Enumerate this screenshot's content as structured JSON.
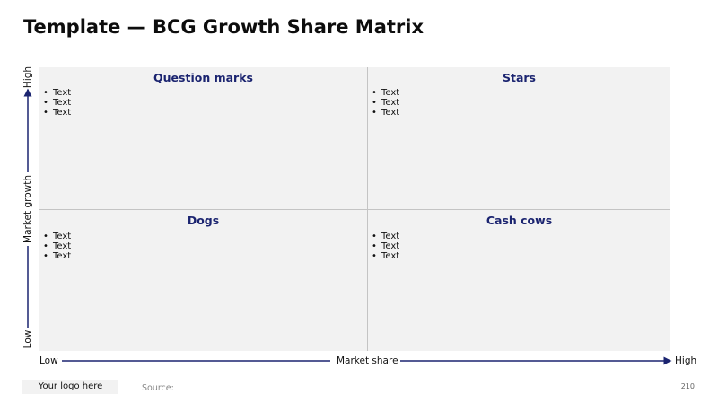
{
  "title": "Template — BCG Growth Share Matrix",
  "matrix": {
    "quadrants": [
      {
        "id": "question-marks",
        "title": "Question marks",
        "bullets": [
          "Text",
          "Text",
          "Text"
        ]
      },
      {
        "id": "stars",
        "title": "Stars",
        "bullets": [
          "Text",
          "Text",
          "Text"
        ]
      },
      {
        "id": "dogs",
        "title": "Dogs",
        "bullets": [
          "Text",
          "Text",
          "Text"
        ]
      },
      {
        "id": "cash-cows",
        "title": "Cash cows",
        "bullets": [
          "Text",
          "Text",
          "Text"
        ]
      }
    ]
  },
  "y_axis": {
    "label": "Market growth",
    "low": "Low",
    "high": "High"
  },
  "x_axis": {
    "label": "Market share",
    "low": "Low",
    "high": "High"
  },
  "footer": {
    "logo": "Your logo here",
    "source_label": "Source:",
    "page_number": "210"
  },
  "colors": {
    "accent": "#1b2470",
    "quadrant_bg": "#f2f2f2",
    "divider": "#c4c4c4"
  }
}
